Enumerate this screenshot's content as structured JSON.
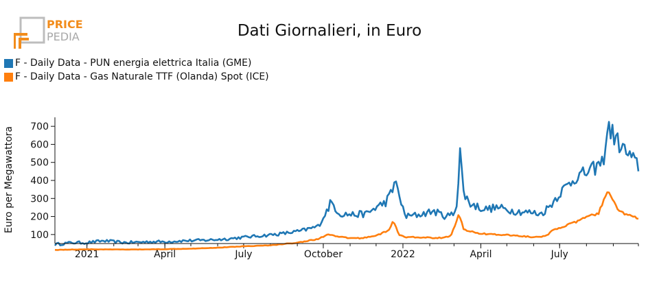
{
  "logo": {
    "line1": "PRICE",
    "line2": "PEDIA"
  },
  "chart_data": {
    "type": "line",
    "title": "Dati Giornalieri, in Euro",
    "xlabel": "",
    "ylabel": "Euro per Megawattora",
    "ylim": [
      50,
      750
    ],
    "yticks": [
      100,
      200,
      300,
      400,
      500,
      600,
      700
    ],
    "xrange": [
      "2020-11-25",
      "2022-09-30"
    ],
    "xticks": [
      {
        "date": "2021-01-01",
        "label": "2021"
      },
      {
        "date": "2021-04-01",
        "label": "April"
      },
      {
        "date": "2021-07-01",
        "label": "July"
      },
      {
        "date": "2021-10-01",
        "label": "October"
      },
      {
        "date": "2022-01-01",
        "label": "2022"
      },
      {
        "date": "2022-04-01",
        "label": "April"
      },
      {
        "date": "2022-07-01",
        "label": "July"
      }
    ],
    "series": [
      {
        "name": "F - Daily Data - PUN energia elettrica Italia (GME)",
        "color": "#1f77b4",
        "points": [
          [
            "2020-11-25",
            45
          ],
          [
            "2020-12-15",
            55
          ],
          [
            "2021-01-01",
            55
          ],
          [
            "2021-01-20",
            65
          ],
          [
            "2021-02-15",
            55
          ],
          [
            "2021-03-15",
            60
          ],
          [
            "2021-04-01",
            60
          ],
          [
            "2021-04-20",
            65
          ],
          [
            "2021-05-15",
            68
          ],
          [
            "2021-06-10",
            75
          ],
          [
            "2021-07-01",
            85
          ],
          [
            "2021-07-25",
            95
          ],
          [
            "2021-08-15",
            105
          ],
          [
            "2021-09-05",
            120
          ],
          [
            "2021-09-25",
            145
          ],
          [
            "2021-10-05",
            230
          ],
          [
            "2021-10-10",
            280
          ],
          [
            "2021-10-20",
            215
          ],
          [
            "2021-11-05",
            210
          ],
          [
            "2021-11-20",
            215
          ],
          [
            "2021-12-01",
            250
          ],
          [
            "2021-12-12",
            280
          ],
          [
            "2021-12-20",
            340
          ],
          [
            "2021-12-24",
            420
          ],
          [
            "2021-12-28",
            290
          ],
          [
            "2022-01-05",
            200
          ],
          [
            "2022-01-20",
            210
          ],
          [
            "2022-02-05",
            230
          ],
          [
            "2022-02-20",
            200
          ],
          [
            "2022-03-01",
            215
          ],
          [
            "2022-03-05",
            300
          ],
          [
            "2022-03-08",
            575
          ],
          [
            "2022-03-12",
            330
          ],
          [
            "2022-03-20",
            270
          ],
          [
            "2022-04-05",
            240
          ],
          [
            "2022-04-20",
            250
          ],
          [
            "2022-05-10",
            230
          ],
          [
            "2022-06-01",
            220
          ],
          [
            "2022-06-10",
            215
          ],
          [
            "2022-06-20",
            260
          ],
          [
            "2022-07-01",
            330
          ],
          [
            "2022-07-20",
            420
          ],
          [
            "2022-08-05",
            450
          ],
          [
            "2022-08-20",
            500
          ],
          [
            "2022-08-26",
            700
          ],
          [
            "2022-09-05",
            620
          ],
          [
            "2022-09-15",
            560
          ],
          [
            "2022-09-30",
            480
          ]
        ]
      },
      {
        "name": "F - Daily Data - Gas Naturale TTF (Olanda) Spot (ICE)",
        "color": "#ff7f0e",
        "points": [
          [
            "2020-11-25",
            15
          ],
          [
            "2021-01-01",
            18
          ],
          [
            "2021-02-01",
            17
          ],
          [
            "2021-03-01",
            17
          ],
          [
            "2021-04-01",
            19
          ],
          [
            "2021-05-01",
            22
          ],
          [
            "2021-06-01",
            27
          ],
          [
            "2021-07-01",
            35
          ],
          [
            "2021-08-01",
            40
          ],
          [
            "2021-09-01",
            55
          ],
          [
            "2021-09-25",
            75
          ],
          [
            "2021-10-06",
            100
          ],
          [
            "2021-10-15",
            90
          ],
          [
            "2021-11-01",
            80
          ],
          [
            "2021-11-15",
            80
          ],
          [
            "2021-12-01",
            95
          ],
          [
            "2021-12-15",
            120
          ],
          [
            "2021-12-21",
            175
          ],
          [
            "2021-12-28",
            95
          ],
          [
            "2022-01-05",
            85
          ],
          [
            "2022-01-20",
            85
          ],
          [
            "2022-02-10",
            80
          ],
          [
            "2022-02-25",
            90
          ],
          [
            "2022-03-03",
            160
          ],
          [
            "2022-03-07",
            215
          ],
          [
            "2022-03-12",
            130
          ],
          [
            "2022-03-25",
            110
          ],
          [
            "2022-04-15",
            100
          ],
          [
            "2022-05-10",
            95
          ],
          [
            "2022-06-01",
            85
          ],
          [
            "2022-06-15",
            90
          ],
          [
            "2022-06-25",
            130
          ],
          [
            "2022-07-15",
            160
          ],
          [
            "2022-08-01",
            195
          ],
          [
            "2022-08-15",
            220
          ],
          [
            "2022-08-26",
            340
          ],
          [
            "2022-09-05",
            250
          ],
          [
            "2022-09-15",
            210
          ],
          [
            "2022-09-30",
            190
          ]
        ]
      }
    ]
  }
}
